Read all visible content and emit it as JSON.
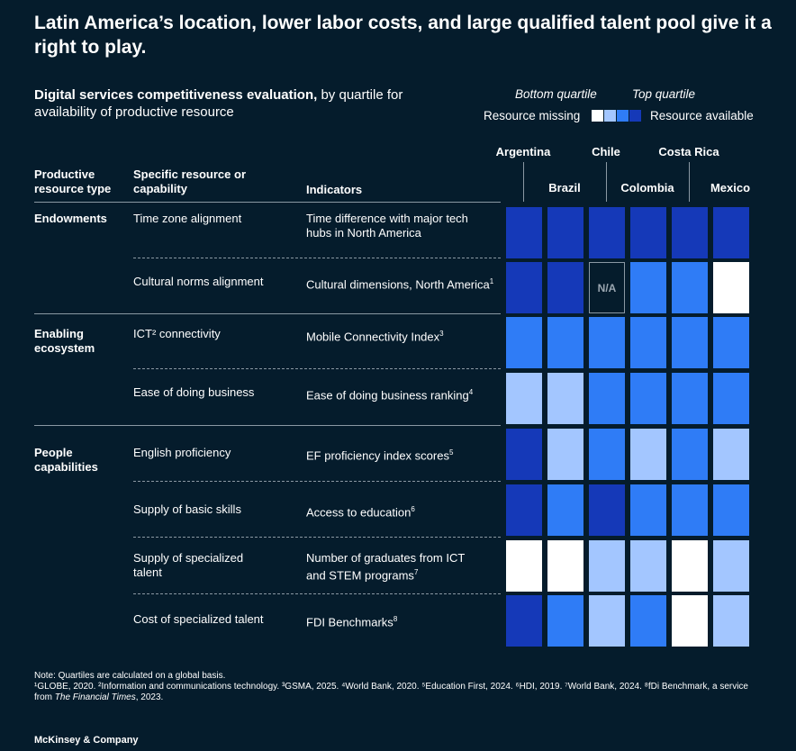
{
  "title": "Latin America’s location, lower labor costs, and large qualified talent pool give it a right to play.",
  "subtitle_bold": "Digital services competitiveness evaluation,",
  "subtitle_rest": " by quartile for availability of productive resource",
  "legend": {
    "bottom_label": "Bottom quartile",
    "top_label": "Top quartile",
    "missing_label": "Resource missing",
    "available_label": "Resource available",
    "swatch_colors": [
      "#ffffff",
      "#a3c6ff",
      "#2f7cf6",
      "#1539b8"
    ]
  },
  "headers": {
    "type": "Productive resource type",
    "resource": "Specific resource or capability",
    "indicators": "Indicators"
  },
  "chart_data": {
    "type": "heatmap",
    "title": "Digital services competitiveness evaluation, by quartile for availability of productive resource",
    "countries": [
      "Argentina",
      "Brazil",
      "Chile",
      "Colombia",
      "Costa Rica",
      "Mexico"
    ],
    "scale": {
      "1": "Bottom quartile (Resource missing)",
      "4": "Top quartile (Resource available)"
    },
    "quartile_colors": {
      "1": "#ffffff",
      "2": "#a3c6ff",
      "3": "#2f7cf6",
      "4": "#1539b8"
    },
    "na_label": "N/A",
    "rows": [
      {
        "group": "Endowments",
        "resource": "Time zone alignment",
        "indicator": "Time difference with major tech hubs in North America",
        "sup": "",
        "values": [
          4,
          4,
          4,
          4,
          4,
          4
        ]
      },
      {
        "group": "",
        "resource": "Cultural norms alignment",
        "indicator": "Cultural dimensions, North America",
        "sup": "1",
        "values": [
          4,
          4,
          null,
          3,
          3,
          1
        ]
      },
      {
        "group": "Enabling ecosystem",
        "resource": "ICT² connectivity",
        "indicator": "Mobile Connectivity Index",
        "sup": "3",
        "values": [
          3,
          3,
          3,
          3,
          3,
          3
        ]
      },
      {
        "group": "",
        "resource": "Ease of doing business",
        "indicator": "Ease of doing business ranking",
        "sup": "4",
        "values": [
          2,
          2,
          3,
          3,
          3,
          3
        ]
      },
      {
        "group": "People capabilities",
        "resource": "English proficiency",
        "indicator": "EF proficiency index scores",
        "sup": "5",
        "values": [
          4,
          2,
          3,
          2,
          3,
          2
        ]
      },
      {
        "group": "",
        "resource": "Supply of basic skills",
        "indicator": "Access to education",
        "sup": "6",
        "values": [
          4,
          3,
          4,
          3,
          3,
          3
        ]
      },
      {
        "group": "",
        "resource": "Supply of specialized talent",
        "indicator": "Number of graduates from ICT and STEM programs",
        "sup": "7",
        "values": [
          1,
          1,
          2,
          2,
          1,
          2
        ]
      },
      {
        "group": "",
        "resource": "Cost of specialized talent",
        "indicator": "FDI Benchmarks",
        "sup": "8",
        "values": [
          4,
          3,
          2,
          3,
          1,
          2
        ]
      }
    ]
  },
  "notes": {
    "line1": "Note: Quartiles are calculated on a global basis.",
    "line2a": "¹GLOBE, 2020. ²Information and communications technology. ³GSMA, 2025. ⁴World Bank, 2020. ⁵Education First, 2024. ⁶HDI, 2019. ⁷World Bank, 2024. ⁸fDi Benchmark, a service from ",
    "line2b": "The Financial Times",
    "line2c": ", 2023."
  },
  "brand": "McKinsey & Company"
}
